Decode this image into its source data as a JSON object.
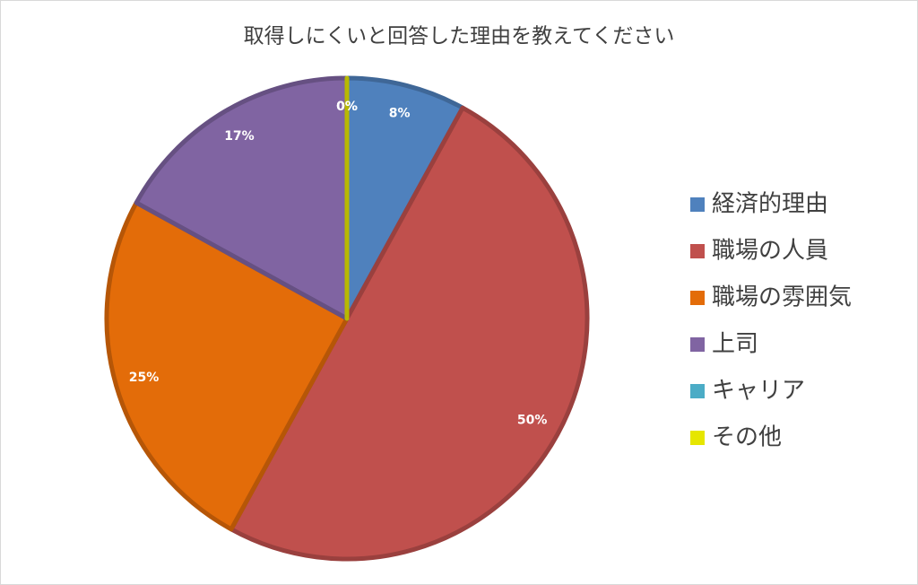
{
  "chart_data": {
    "type": "pie",
    "title": "取得しにくいと回答した理由を教えてください",
    "categories": [
      "経済的理由",
      "職場の人員",
      "職場の雰囲気",
      "上司",
      "キャリア",
      "その他"
    ],
    "values": [
      8,
      50,
      25,
      17,
      0,
      0
    ],
    "value_labels": [
      "8%",
      "50%",
      "25%",
      "17%",
      "0%",
      "0%"
    ],
    "colors": [
      "#4f81bd",
      "#c0504d",
      "#e36c09",
      "#8064a2",
      "#4bacc6",
      "#e6e600"
    ],
    "legend": "right"
  }
}
